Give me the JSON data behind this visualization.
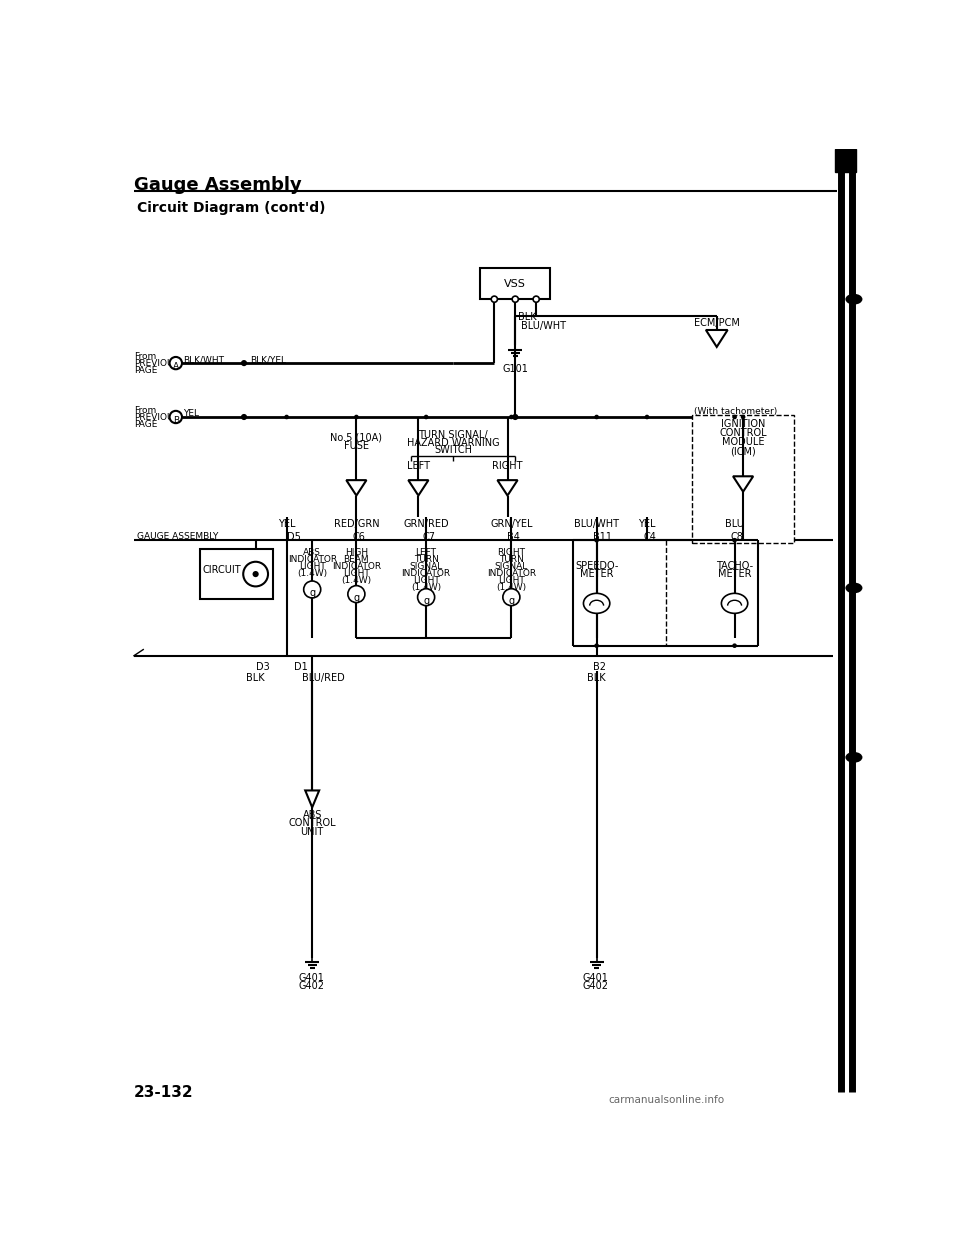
{
  "title": "Gauge Assembly",
  "subtitle": "Circuit Diagram (cont'd)",
  "page_number": "23-132",
  "bg_color": "#ffffff",
  "line_color": "#000000",
  "title_fontsize": 13,
  "subtitle_fontsize": 10,
  "watermark": "carmanualsonline.info"
}
